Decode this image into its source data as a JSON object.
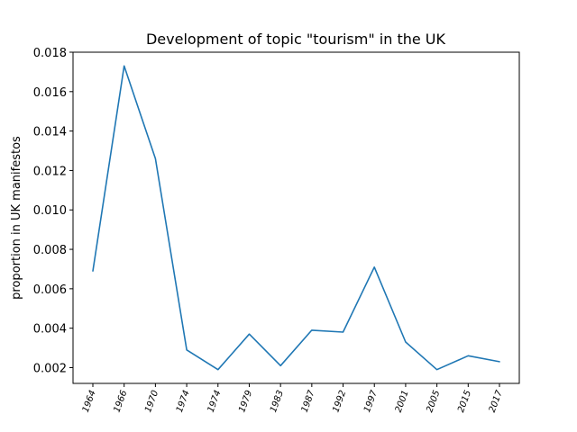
{
  "chart_data": {
    "type": "line",
    "title": "Development of topic \"tourism\" in the UK",
    "xlabel": "",
    "ylabel": "proportion in UK manifestos",
    "categories": [
      "1964",
      "1966",
      "1970",
      "1974",
      "1974",
      "1979",
      "1983",
      "1987",
      "1992",
      "1997",
      "2001",
      "2005",
      "2015",
      "2017"
    ],
    "series": [
      {
        "values": [
          0.0069,
          0.0173,
          0.0126,
          0.0029,
          0.0019,
          0.0037,
          0.0021,
          0.0039,
          0.0038,
          0.0071,
          0.0033,
          0.0019,
          0.0026,
          0.0023
        ],
        "color": "#1f77b4"
      }
    ],
    "ylim": [
      0.0012,
      0.018
    ],
    "yticks": [
      {
        "value": 0.002,
        "label": "0.002"
      },
      {
        "value": 0.004,
        "label": "0.004"
      },
      {
        "value": 0.006,
        "label": "0.006"
      },
      {
        "value": 0.008,
        "label": "0.008"
      },
      {
        "value": 0.01,
        "label": "0.010"
      },
      {
        "value": 0.012,
        "label": "0.012"
      },
      {
        "value": 0.014,
        "label": "0.014"
      },
      {
        "value": 0.016,
        "label": "0.016"
      },
      {
        "value": 0.018,
        "label": "0.018"
      }
    ],
    "grid": false,
    "legend": "none"
  }
}
